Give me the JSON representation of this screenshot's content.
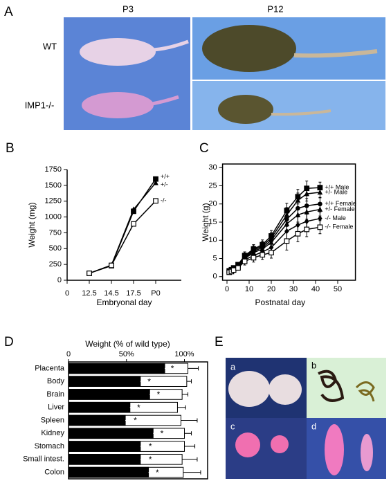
{
  "panels": {
    "A": {
      "label": "A",
      "columns": [
        "P3",
        "P12"
      ],
      "rows": [
        "WT",
        "IMP1-/-"
      ]
    },
    "E": {
      "label": "E",
      "photos": [
        "a",
        "b",
        "c",
        "d"
      ]
    }
  },
  "chart_data": [
    {
      "type": "line",
      "label": "B",
      "x_label": "Embryonal day",
      "y_label": "Weight (mg)",
      "categories": [
        "0",
        "12.5",
        "14.5",
        "17.5",
        "P0"
      ],
      "ylim": [
        0,
        1750
      ],
      "yticks": [
        0,
        250,
        500,
        750,
        1000,
        1250,
        1500,
        1750
      ],
      "series": [
        {
          "name": "+/+",
          "color": "#000000",
          "marker": "square",
          "values": [
            null,
            110,
            230,
            1090,
            1600
          ]
        },
        {
          "name": "+/-",
          "color": "#000000",
          "marker": "triangle",
          "values": [
            null,
            110,
            240,
            1120,
            1540
          ]
        },
        {
          "name": "-/-",
          "color": "#000000",
          "marker": "open-square",
          "values": [
            null,
            110,
            235,
            890,
            1255
          ]
        }
      ]
    },
    {
      "type": "line",
      "label": "C",
      "x_label": "Postnatal day",
      "y_label": "Weight (g)",
      "x": [
        1,
        2,
        3,
        5,
        8,
        12,
        16,
        20,
        27,
        32,
        36,
        42
      ],
      "xlim": [
        -2,
        58
      ],
      "xticks": [
        0,
        10,
        20,
        30,
        40,
        50
      ],
      "ylim": [
        -1,
        31
      ],
      "yticks": [
        0,
        5,
        10,
        15,
        20,
        25,
        30
      ],
      "series": [
        {
          "name": "+/+ Male",
          "color": "#000000",
          "marker": "square",
          "values": [
            1.6,
            1.9,
            2.4,
            3.3,
            5.8,
            7.6,
            8.8,
            11.2,
            18.2,
            22.0,
            24.3,
            24.5
          ],
          "errors": [
            0.3,
            0.3,
            0.4,
            0.6,
            1.0,
            1.2,
            1.3,
            1.5,
            2.0,
            2.0,
            2.0,
            1.5
          ]
        },
        {
          "name": "+/- Male",
          "color": "#000000",
          "marker": "triangle",
          "values": [
            1.5,
            1.8,
            2.3,
            3.2,
            5.5,
            7.3,
            8.4,
            10.6,
            17.0,
            21.0,
            22.8,
            23.2
          ],
          "errors": [
            0.3,
            0.3,
            0.4,
            0.6,
            1.0,
            1.2,
            1.3,
            1.5,
            2.0,
            2.0,
            2.0,
            1.5
          ]
        },
        {
          "name": "+/+ Female",
          "color": "#000000",
          "marker": "circle",
          "values": [
            1.5,
            1.8,
            2.2,
            3.0,
            5.2,
            7.0,
            8.0,
            10.0,
            15.8,
            18.8,
            19.5,
            20.0
          ],
          "errors": [
            0.3,
            0.3,
            0.4,
            0.6,
            1.0,
            1.2,
            1.3,
            1.5,
            2.0,
            2.0,
            2.0,
            1.8
          ]
        },
        {
          "name": "+/- Female",
          "color": "#000000",
          "marker": "triangle",
          "values": [
            1.4,
            1.7,
            2.1,
            2.9,
            5.0,
            6.6,
            7.6,
            9.4,
            14.5,
            17.0,
            17.8,
            18.5
          ],
          "errors": [
            0.3,
            0.3,
            0.4,
            0.6,
            1.0,
            1.2,
            1.3,
            1.5,
            2.0,
            2.0,
            2.0,
            1.8
          ]
        },
        {
          "name": "-/- Male",
          "color": "#000000",
          "marker": "diamond",
          "values": [
            1.3,
            1.5,
            1.9,
            2.6,
            4.6,
            5.8,
            6.8,
            8.0,
            12.5,
            14.2,
            15.2,
            16.0
          ],
          "errors": [
            0.3,
            0.3,
            0.4,
            0.6,
            1.0,
            1.2,
            1.3,
            1.5,
            2.5,
            2.2,
            2.0,
            1.8
          ]
        },
        {
          "name": "-/- Female",
          "color": "#000000",
          "marker": "open-square",
          "values": [
            1.2,
            1.4,
            1.8,
            2.4,
            4.2,
            5.2,
            6.0,
            6.6,
            9.8,
            11.8,
            13.0,
            13.6
          ],
          "errors": [
            0.3,
            0.3,
            0.4,
            0.6,
            1.0,
            1.2,
            1.3,
            1.5,
            2.5,
            2.2,
            2.0,
            1.8
          ]
        }
      ]
    },
    {
      "type": "hbar",
      "label": "D",
      "title": "Weight (% of wild type)",
      "categories": [
        "Placenta",
        "Body",
        "Brain",
        "Liver",
        "Spleen",
        "Kidney",
        "Stomach",
        "Small intest.",
        "Colon"
      ],
      "xlim": [
        0,
        120
      ],
      "xticks": [
        0,
        {
          "value": 50,
          "label": "50%"
        },
        {
          "value": 100,
          "label": "100%"
        }
      ],
      "significance": [
        "*",
        "*",
        "*",
        "*",
        "*",
        "*",
        "*",
        "*",
        "*"
      ],
      "series": [
        {
          "color": "#ffffff",
          "values": [
            103,
            102,
            98,
            94,
            97,
            100,
            100,
            98,
            99
          ],
          "errors": [
            9,
            4,
            5,
            7,
            14,
            6,
            9,
            13,
            15
          ]
        },
        {
          "color": "#000000",
          "values": [
            83,
            62,
            70,
            53,
            49,
            73,
            62,
            62,
            69
          ],
          "errors": [
            4,
            5,
            5,
            5,
            6,
            5,
            6,
            6,
            5
          ]
        }
      ]
    }
  ]
}
